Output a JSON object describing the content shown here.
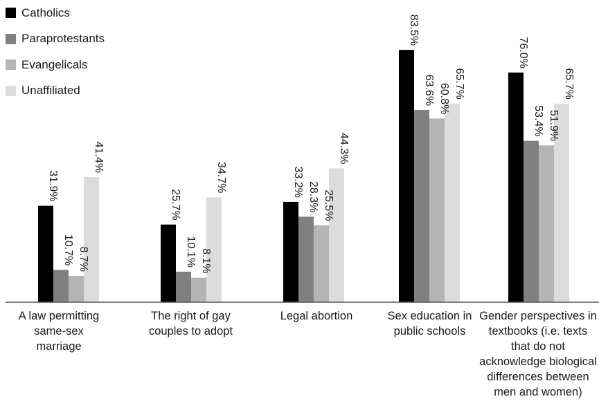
{
  "chart_data": {
    "type": "bar",
    "categories": [
      "A law permitting same-sex marriage",
      "The right of gay couples to adopt",
      "Legal abortion",
      "Sex education in public schools",
      "Gender perspectives in textbooks (i.e. texts that do not acknowledge biological differences between men and women)"
    ],
    "series": [
      {
        "name": "Catholics",
        "color": "#000000",
        "values": [
          31.9,
          25.7,
          33.2,
          83.5,
          76.0
        ]
      },
      {
        "name": "Paraprotestants",
        "color": "#808080",
        "values": [
          10.7,
          10.1,
          28.3,
          63.6,
          53.4
        ]
      },
      {
        "name": "Evangelicals",
        "color": "#b4b4b4",
        "values": [
          8.7,
          8.1,
          25.5,
          60.8,
          51.9
        ]
      },
      {
        "name": "Unaffiliated",
        "color": "#dcdcdc",
        "values": [
          41.4,
          34.7,
          44.3,
          65.7,
          65.7
        ]
      }
    ],
    "value_labels": [
      [
        "31.9%",
        "25.7%",
        "33.2%",
        "83.5%",
        "76.0%"
      ],
      [
        "10.7%",
        "10.1%",
        "28.3%",
        "63.6%",
        "53.4%"
      ],
      [
        "8.7%",
        "8.1%",
        "25.5%",
        "60.8%",
        "51.9%"
      ],
      [
        "41.4%",
        "34.7%",
        "44.3%",
        "65.7%",
        "65.7%"
      ]
    ],
    "ylim": [
      0,
      100
    ],
    "grid": false,
    "legend_position": "top-left"
  },
  "legend": {
    "items": [
      {
        "label": "Catholics"
      },
      {
        "label": "Paraprotestants"
      },
      {
        "label": "Evangelicals"
      },
      {
        "label": "Unaffiliated"
      }
    ]
  },
  "axis": {
    "category_labels": [
      "A law permitting same-sex marriage",
      "The right of gay couples to adopt",
      "Legal abortion",
      "Sex education in public schools",
      "Gender perspectives in textbooks (i.e. texts that do not acknowledge biological differences between men and women)"
    ]
  }
}
